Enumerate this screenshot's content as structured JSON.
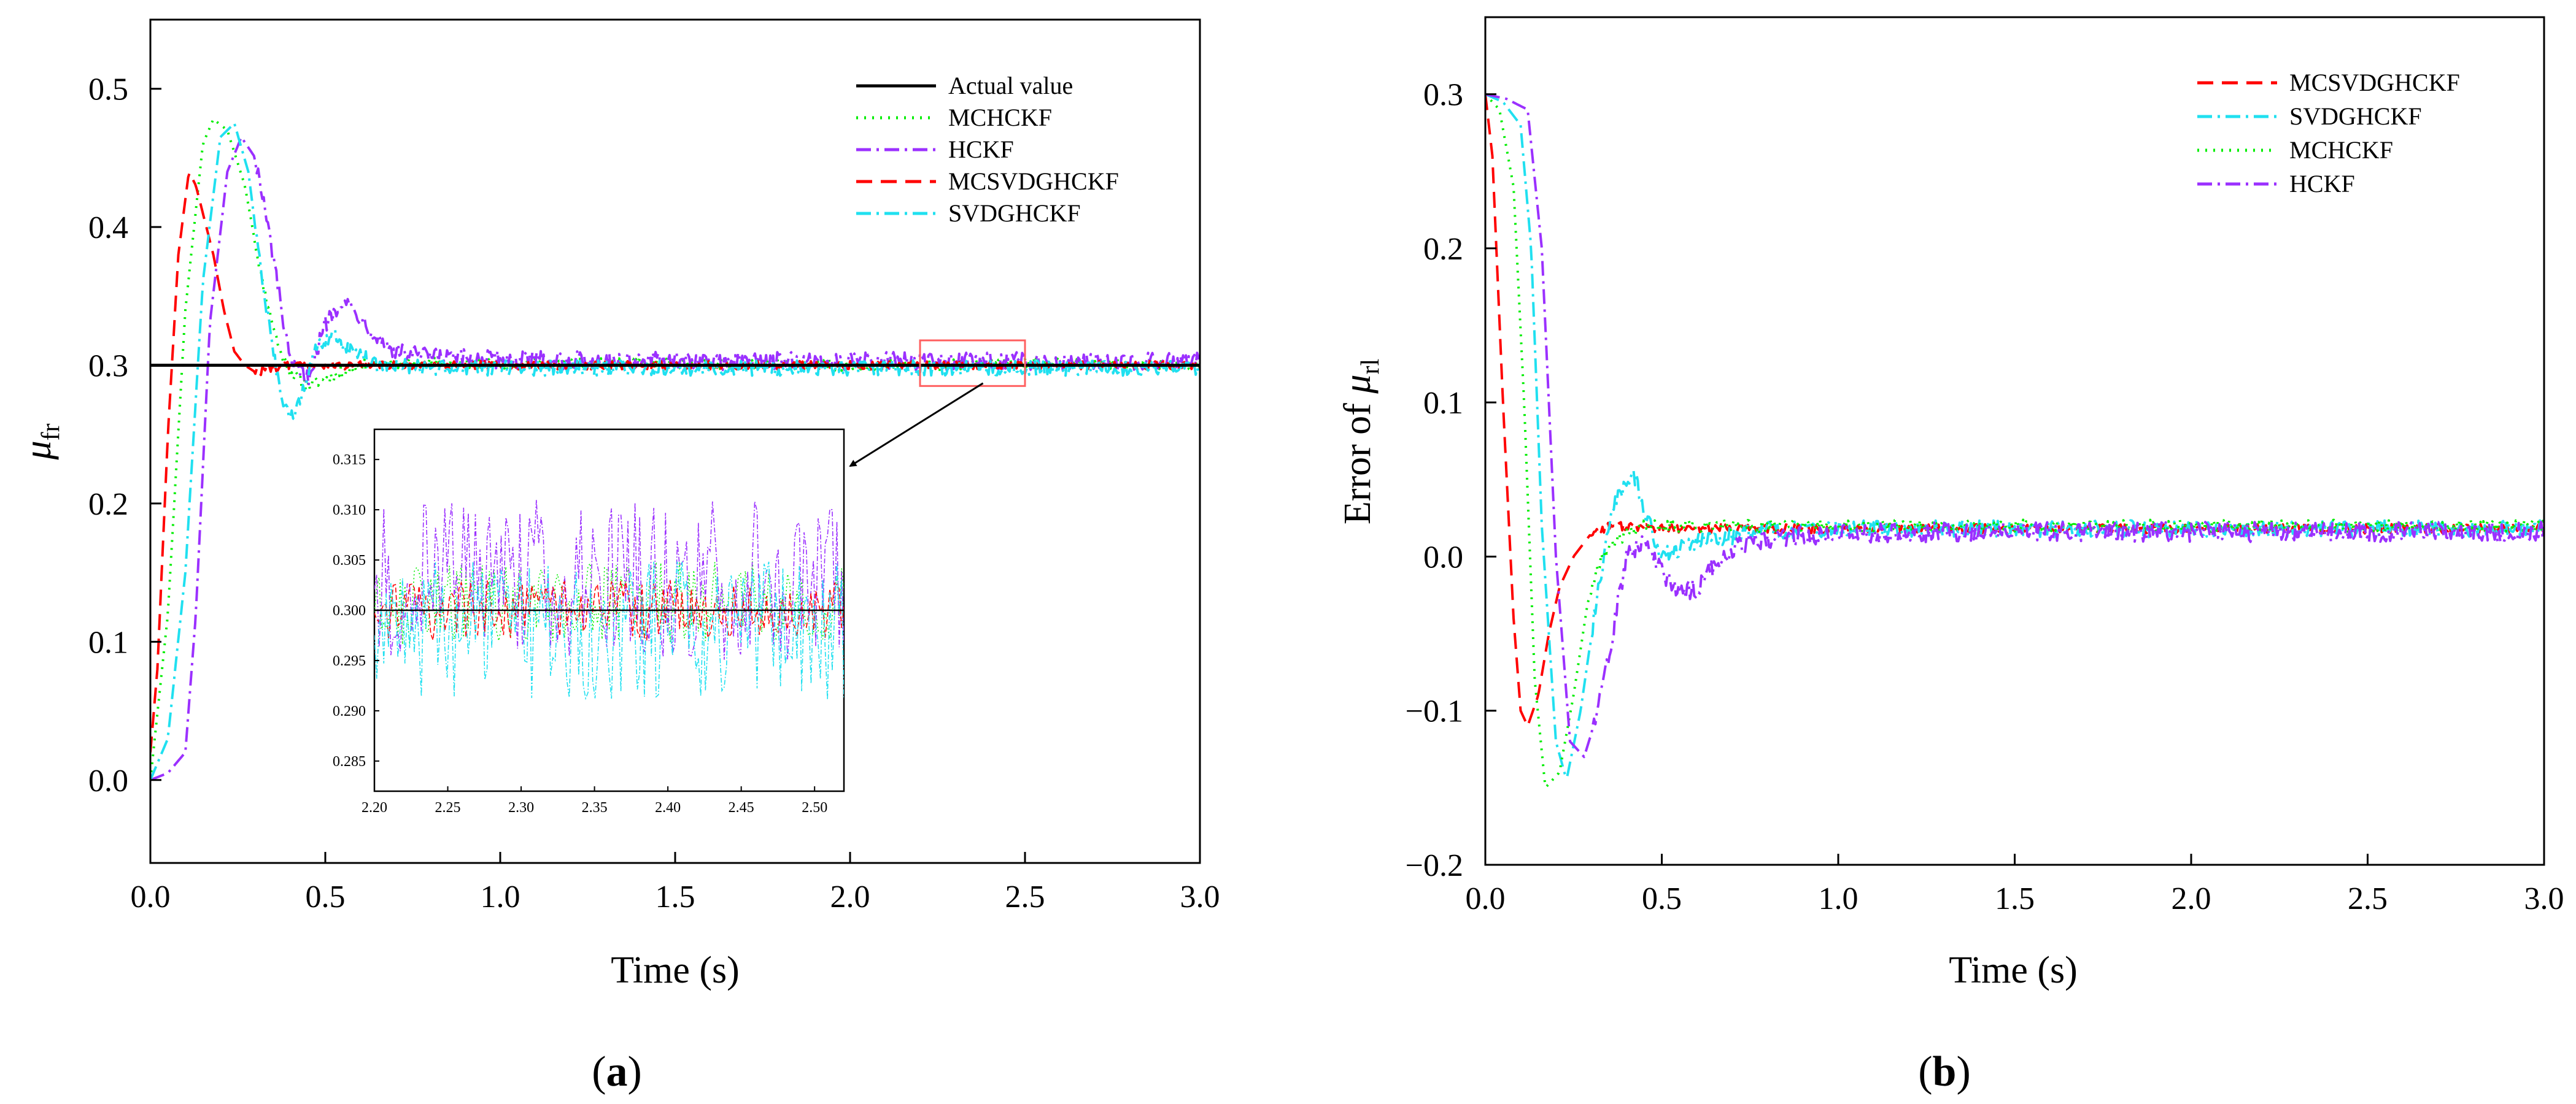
{
  "colors": {
    "actual": "#000000",
    "MCHCKF": "#00ee00",
    "HCKF": "#9b30ff",
    "MCSVDGHCKF": "#ff0000",
    "SVDGHCKF": "#20e0f0",
    "zoom_box": "#ff6060"
  },
  "chart_data": [
    {
      "type": "line",
      "panel_label_open": "(",
      "panel_label_letter": "a",
      "panel_label_close": ")",
      "xlabel": "Time (s)",
      "ylabel_symbol": "μ",
      "ylabel_subscript": "fr",
      "xlim": [
        0,
        3.0
      ],
      "ylim": [
        -0.06,
        0.55
      ],
      "xticks": [
        "0.0",
        "0.5",
        "1.0",
        "1.5",
        "2.0",
        "2.5",
        "3.0"
      ],
      "yticks": [
        "0.0",
        "0.1",
        "0.2",
        "0.3",
        "0.4",
        "0.5"
      ],
      "legend_position": "top-right",
      "series": [
        {
          "name": "Actual value",
          "key": "actual",
          "dash": "solid",
          "x": [
            0,
            3.0
          ],
          "y": [
            0.3,
            0.3
          ]
        },
        {
          "name": "MCHCKF",
          "key": "MCHCKF",
          "dash": "dot",
          "x": [
            0,
            0.05,
            0.1,
            0.15,
            0.18,
            0.22,
            0.27,
            0.32,
            0.37,
            0.4,
            0.45,
            0.5,
            0.6,
            0.8,
            1.0,
            1.5,
            2.0,
            2.5,
            3.0
          ],
          "y": [
            0.0,
            0.12,
            0.34,
            0.46,
            0.478,
            0.47,
            0.43,
            0.36,
            0.31,
            0.295,
            0.285,
            0.29,
            0.3,
            0.302,
            0.301,
            0.301,
            0.3,
            0.301,
            0.3
          ]
        },
        {
          "name": "HCKF",
          "key": "HCKF",
          "dash": "dashdot",
          "x": [
            0,
            0.05,
            0.1,
            0.13,
            0.17,
            0.22,
            0.26,
            0.3,
            0.35,
            0.4,
            0.45,
            0.5,
            0.55,
            0.6,
            0.65,
            0.7,
            0.8,
            1.0,
            1.5,
            2.0,
            2.5,
            3.0
          ],
          "y": [
            0.0,
            0.005,
            0.02,
            0.12,
            0.33,
            0.44,
            0.465,
            0.45,
            0.38,
            0.3,
            0.29,
            0.33,
            0.348,
            0.335,
            0.32,
            0.31,
            0.306,
            0.304,
            0.303,
            0.303,
            0.303,
            0.303
          ]
        },
        {
          "name": "MCSVDGHCKF",
          "key": "MCSVDGHCKF",
          "dash": "dash",
          "x": [
            0,
            0.02,
            0.05,
            0.08,
            0.11,
            0.13,
            0.15,
            0.18,
            0.21,
            0.24,
            0.27,
            0.3,
            0.35,
            0.4,
            0.5,
            0.7,
            1.0,
            1.5,
            2.0,
            2.5,
            3.0
          ],
          "y": [
            0.02,
            0.08,
            0.25,
            0.38,
            0.44,
            0.43,
            0.41,
            0.38,
            0.34,
            0.31,
            0.3,
            0.295,
            0.298,
            0.3,
            0.3,
            0.3,
            0.3,
            0.3,
            0.3,
            0.3,
            0.3
          ]
        },
        {
          "name": "SVDGHCKF",
          "key": "SVDGHCKF",
          "dash": "dashdot",
          "x": [
            0,
            0.05,
            0.1,
            0.15,
            0.2,
            0.24,
            0.28,
            0.32,
            0.37,
            0.4,
            0.43,
            0.47,
            0.52,
            0.58,
            0.65,
            0.8,
            1.0,
            1.5,
            2.0,
            2.5,
            3.0
          ],
          "y": [
            0.0,
            0.03,
            0.15,
            0.36,
            0.465,
            0.475,
            0.44,
            0.36,
            0.28,
            0.26,
            0.275,
            0.31,
            0.322,
            0.31,
            0.3,
            0.298,
            0.298,
            0.298,
            0.298,
            0.298,
            0.298
          ]
        }
      ],
      "inset": {
        "xlim": [
          2.2,
          2.52
        ],
        "ylim": [
          0.282,
          0.318
        ],
        "xticks": [
          "2.20",
          "2.25",
          "2.30",
          "2.35",
          "2.40",
          "2.45",
          "2.50"
        ],
        "yticks": [
          "0.285",
          "0.290",
          "0.295",
          "0.300",
          "0.305",
          "0.310",
          "0.315"
        ],
        "zoom_region": {
          "x": [
            2.2,
            2.5
          ],
          "y": [
            0.285,
            0.318
          ]
        }
      }
    },
    {
      "type": "line",
      "panel_label_open": "(",
      "panel_label_letter": "b",
      "panel_label_close": ")",
      "xlabel": "Time (s)",
      "ylabel_prefix": "Error of ",
      "ylabel_symbol": "μ",
      "ylabel_subscript": "rl",
      "xlim": [
        0,
        3.0
      ],
      "ylim": [
        -0.2,
        0.35
      ],
      "xticks": [
        "0.0",
        "0.5",
        "1.0",
        "1.5",
        "2.0",
        "2.5",
        "3.0"
      ],
      "yticks": [
        "−0.2",
        "−0.1",
        "0.0",
        "0.1",
        "0.2",
        "0.3"
      ],
      "legend_position": "top-right",
      "series": [
        {
          "name": "MCSVDGHCKF",
          "key": "MCSVDGHCKF",
          "dash": "dash",
          "x": [
            0,
            0.02,
            0.05,
            0.08,
            0.1,
            0.12,
            0.15,
            0.18,
            0.21,
            0.25,
            0.3,
            0.35,
            0.4,
            0.5,
            0.7,
            1.0,
            1.5,
            2.0,
            2.5,
            3.0
          ],
          "y": [
            0.3,
            0.26,
            0.1,
            -0.04,
            -0.1,
            -0.11,
            -0.09,
            -0.05,
            -0.02,
            0.0,
            0.015,
            0.02,
            0.02,
            0.018,
            0.018,
            0.018,
            0.018,
            0.018,
            0.018,
            0.018
          ]
        },
        {
          "name": "SVDGHCKF",
          "key": "SVDGHCKF",
          "dash": "dashdot",
          "x": [
            0,
            0.05,
            0.1,
            0.13,
            0.16,
            0.2,
            0.23,
            0.27,
            0.32,
            0.36,
            0.4,
            0.42,
            0.45,
            0.5,
            0.6,
            0.8,
            1.0,
            1.5,
            2.0,
            2.5,
            3.0
          ],
          "y": [
            0.3,
            0.295,
            0.28,
            0.2,
            0.02,
            -0.12,
            -0.145,
            -0.1,
            -0.02,
            0.03,
            0.05,
            0.055,
            0.03,
            0.0,
            0.01,
            0.017,
            0.018,
            0.018,
            0.018,
            0.018,
            0.018
          ]
        },
        {
          "name": "MCHCKF",
          "key": "MCHCKF",
          "dash": "dot",
          "x": [
            0,
            0.04,
            0.08,
            0.11,
            0.14,
            0.17,
            0.21,
            0.25,
            0.29,
            0.33,
            0.38,
            0.45,
            0.55,
            0.7,
            1.0,
            1.5,
            2.0,
            2.5,
            3.0
          ],
          "y": [
            0.3,
            0.29,
            0.24,
            0.1,
            -0.08,
            -0.15,
            -0.14,
            -0.09,
            -0.03,
            0.0,
            0.012,
            0.02,
            0.02,
            0.02,
            0.02,
            0.02,
            0.02,
            0.02,
            0.02
          ]
        },
        {
          "name": "HCKF",
          "key": "HCKF",
          "dash": "dashdot",
          "x": [
            0,
            0.06,
            0.12,
            0.16,
            0.2,
            0.24,
            0.28,
            0.32,
            0.36,
            0.4,
            0.45,
            0.5,
            0.55,
            0.6,
            0.65,
            0.7,
            0.8,
            1.0,
            1.5,
            2.0,
            2.5,
            3.0
          ],
          "y": [
            0.3,
            0.297,
            0.29,
            0.2,
            0.0,
            -0.12,
            -0.13,
            -0.1,
            -0.05,
            0.0,
            0.01,
            -0.01,
            -0.025,
            -0.02,
            -0.005,
            0.005,
            0.012,
            0.015,
            0.016,
            0.016,
            0.016,
            0.016
          ]
        }
      ]
    }
  ]
}
